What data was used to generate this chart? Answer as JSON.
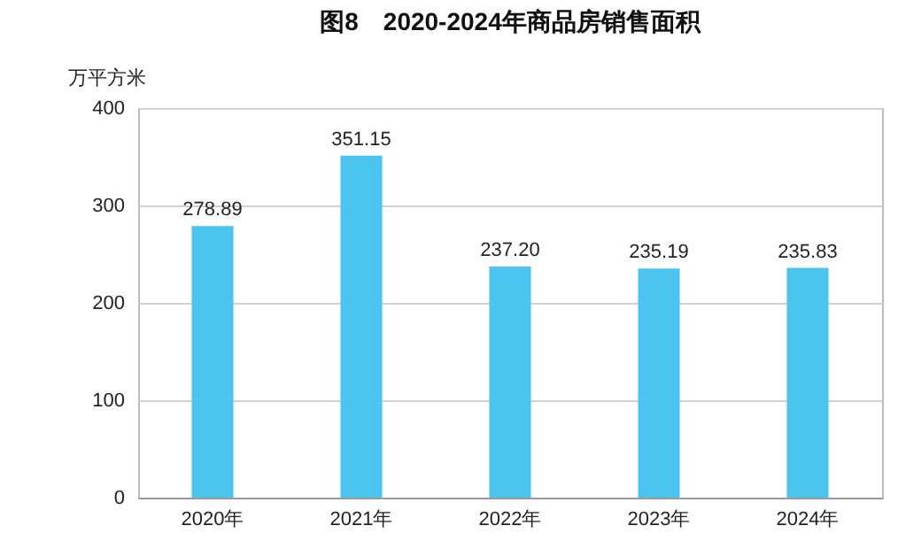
{
  "chart_data": {
    "type": "bar",
    "title": "图8　2020-2024年商品房销售面积",
    "ylabel": "万平方米",
    "categories": [
      "2020年",
      "2021年",
      "2022年",
      "2023年",
      "2024年"
    ],
    "values": [
      278.89,
      351.15,
      237.2,
      235.19,
      235.83
    ],
    "value_labels": [
      "278.89",
      "351.15",
      "237.20",
      "235.19",
      "235.83"
    ],
    "color": "#4cc4f0",
    "ylim": [
      0,
      400
    ],
    "yticks": [
      0,
      100,
      200,
      300,
      400
    ],
    "grid": "y"
  }
}
